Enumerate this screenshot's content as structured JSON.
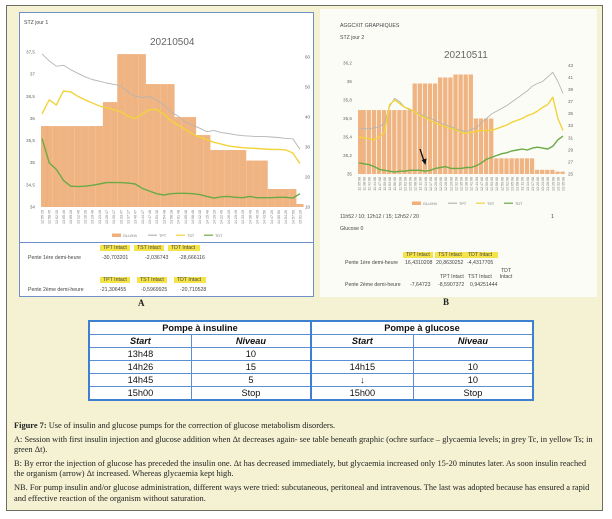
{
  "colors": {
    "bar": "#efb07c",
    "tpt": "#b5b5b5",
    "tst": "#f2d33c",
    "tdt": "#6aaa45",
    "frame_bg": "#f4f2d2",
    "table_border": "#3f7fd0",
    "highlight": "#f5e34a"
  },
  "panel_a": {
    "label": "A",
    "heading": "STZ jour  1",
    "slopes": {
      "headers": [
        "TPT Intact",
        "TST Intact",
        "TDT Intact"
      ],
      "row1_label": "Pente 1ère demi-heure",
      "row1": [
        "-30,703201",
        "-2,036743",
        "-28,666116"
      ],
      "row2_label": "Pente 2ème demi-heure",
      "row2": [
        "-21,306455",
        "-0,5969925",
        "-20,710528"
      ]
    }
  },
  "panel_b": {
    "label": "B",
    "header1": "AGGCXIT GRAPHIQUES",
    "heading": "STZ jour  2",
    "note1": "11h52 / 10; 12h12 / 15;  12h52 / 20",
    "note_num": "1",
    "note2": "Glucose  0",
    "slopes": {
      "headers": [
        "TPT Intact",
        "TST Intact",
        "TDT Intact"
      ],
      "row1_label": "Pente 1ère demi-heure",
      "row1": [
        "16,4310208",
        "20,8630252",
        "-4,4317705"
      ],
      "headers2": [
        "TPT Intact",
        "TST Intact",
        "TDT Intact"
      ],
      "row2_label": "Pente 2ème demi-heure",
      "row2": [
        "-7,64723",
        "-8,5907372",
        "0,94251444"
      ]
    }
  },
  "chart_data": [
    {
      "type": "bar+line",
      "title": "20210504",
      "legend": [
        "GLU/H4",
        "TPT",
        "TST",
        "TDT"
      ],
      "legend_position": "bottom",
      "ylim": [
        34,
        37.5
      ],
      "y_ticks": [
        "37,5",
        "37",
        "36,5",
        "36",
        "35,5",
        "35",
        "34,5",
        "34"
      ],
      "y2lim": [
        10,
        61.7
      ],
      "y2_ticks": [
        "60",
        "50",
        "40",
        "30",
        "20",
        "10"
      ],
      "categories": [
        "12:55:15",
        "12:58:45",
        "13:02:15",
        "13:05:46",
        "13:09:16",
        "13:12:46",
        "13:16:16",
        "13:19:46",
        "13:23:16",
        "13:26:47",
        "13:30:17",
        "13:33:47",
        "13:37:17",
        "13:40:47",
        "13:44:17",
        "13:47:48",
        "13:51:18",
        "13:54:48",
        "13:58:18",
        "14:01:48",
        "14:05:18",
        "14:08:48",
        "14:12:18",
        "14:15:48",
        "14:19:19",
        "14:22:49",
        "14:26:19",
        "14:29:49",
        "14:33:19",
        "14:36:49",
        "14:40:19",
        "14:43:50",
        "14:47:20",
        "14:50:50",
        "14:54:20",
        "14:57:50",
        "15:01:20"
      ],
      "series": [
        {
          "name": "GLU/H4",
          "axis": "right",
          "type": "bar",
          "values": [
            37,
            37,
            37,
            37,
            37,
            37,
            37,
            37,
            37,
            45,
            45,
            61,
            61,
            61,
            61,
            51,
            51,
            51,
            51,
            40,
            40,
            40,
            34,
            34,
            29,
            29,
            29,
            29,
            29,
            25.5,
            25.5,
            25.5,
            16,
            16,
            16,
            16,
            11
          ]
        },
        {
          "name": "TPT",
          "axis": "left",
          "type": "line",
          "values": [
            37.46,
            37.3,
            37.18,
            37.2,
            37.1,
            37.02,
            36.94,
            36.88,
            36.84,
            36.8,
            36.77,
            36.74,
            36.6,
            36.5,
            36.47,
            36.49,
            36.42,
            36.3,
            36.15,
            36.05,
            35.92,
            35.85,
            35.78,
            35.7,
            35.73,
            35.68,
            35.66,
            35.63,
            35.61,
            35.6,
            35.59,
            35.59,
            35.58,
            35.57,
            35.55,
            35.54,
            35.3
          ]
        },
        {
          "name": "TST",
          "axis": "left",
          "type": "line",
          "values": [
            36.1,
            36.42,
            36.3,
            36.62,
            36.6,
            36.5,
            36.42,
            36.35,
            36.28,
            36.24,
            36.2,
            36.15,
            36.05,
            36.0,
            36.1,
            36.2,
            36.2,
            36.1,
            35.95,
            35.85,
            35.75,
            35.65,
            35.58,
            35.52,
            35.46,
            35.42,
            35.38,
            35.36,
            35.34,
            35.33,
            35.32,
            35.31,
            35.3,
            35.3,
            35.29,
            35.22,
            34.98
          ]
        },
        {
          "name": "TDT",
          "axis": "left",
          "type": "line",
          "values": [
            35.55,
            35.0,
            34.85,
            34.6,
            34.47,
            34.46,
            34.47,
            34.49,
            34.52,
            34.55,
            34.55,
            34.55,
            34.54,
            34.52,
            34.42,
            34.36,
            34.3,
            34.27,
            34.3,
            34.31,
            34.31,
            34.3,
            34.28,
            34.24,
            34.2,
            34.23,
            34.24,
            34.22,
            34.21,
            34.24,
            34.21,
            34.21,
            34.21,
            34.22,
            34.22,
            34.2,
            34.3
          ]
        }
      ]
    },
    {
      "type": "bar+line",
      "title": "20210511",
      "legend": [
        "GLU/H4",
        "TPT",
        "TST",
        "TDT"
      ],
      "legend_position": "bottom",
      "ylim": [
        35,
        36.2
      ],
      "y_ticks": [
        "36,2",
        "36",
        "35,8",
        "35,6",
        "35,4",
        "35,2",
        "35"
      ],
      "y2lim": [
        25,
        43.4
      ],
      "y2_ticks": [
        "43",
        "41",
        "39",
        "37",
        "35",
        "33",
        "31",
        "29",
        "27",
        "25"
      ],
      "annotation": "arrow",
      "categories": [
        "11:35:08",
        "11:38:08",
        "11:41:08",
        "11:44:08",
        "11:47:08",
        "11:50:08",
        "11:53:08",
        "11:56:08",
        "11:59:08",
        "12:02:08",
        "12:05:08",
        "12:08:08",
        "12:11:08",
        "12:14:08",
        "12:17:08",
        "12:20:08",
        "12:23:08",
        "12:26:08",
        "12:29:08",
        "12:32:08",
        "12:35:08",
        "12:38:08",
        "12:41:08",
        "12:44:08",
        "12:47:08",
        "12:50:08",
        "12:53:08",
        "12:56:08",
        "12:59:08",
        "13:02:08",
        "13:05:08",
        "13:08:08",
        "13:11:08",
        "13:14:08",
        "13:17:08",
        "13:20:08",
        "13:23:08",
        "13:26:08",
        "13:29:08",
        "13:32:08",
        "13:35:08"
      ],
      "series": [
        {
          "name": "GLU/H4",
          "axis": "right",
          "type": "bar",
          "values": [
            35.6,
            35.6,
            35.6,
            35.6,
            35.6,
            35.6,
            35.6,
            35.6,
            35.6,
            35.6,
            35.6,
            40,
            40,
            40,
            40,
            40,
            41,
            41,
            41,
            41.5,
            41.5,
            41.5,
            41.5,
            34.2,
            34.2,
            34.2,
            34.2,
            27.6,
            27.6,
            27.6,
            27.6,
            27.6,
            27.6,
            27.6,
            27.6,
            25.7,
            25.7,
            25.7,
            25.7,
            25.4,
            25.4
          ]
        },
        {
          "name": "TPT",
          "axis": "left",
          "type": "line",
          "values": [
            35.49,
            35.49,
            35.49,
            35.5,
            35.51,
            35.55,
            35.73,
            35.82,
            35.78,
            35.72,
            35.69,
            35.67,
            35.65,
            35.62,
            35.6,
            35.58,
            35.55,
            35.53,
            35.51,
            35.49,
            35.47,
            35.46,
            35.48,
            35.5,
            35.55,
            35.6,
            35.65,
            35.68,
            35.71,
            35.74,
            35.78,
            35.82,
            35.86,
            35.9,
            35.95,
            35.98,
            36.0,
            36.05,
            36.1,
            36.0,
            35.87
          ]
        },
        {
          "name": "TST",
          "axis": "left",
          "type": "line",
          "values": [
            35.4,
            35.39,
            35.38,
            35.37,
            35.4,
            35.45,
            35.75,
            35.8,
            35.76,
            35.72,
            35.7,
            35.67,
            35.63,
            35.61,
            35.58,
            35.55,
            35.53,
            35.51,
            35.49,
            35.48,
            35.45,
            35.44,
            35.45,
            35.46,
            35.47,
            35.47,
            35.47,
            35.49,
            35.51,
            35.53,
            35.56,
            35.58,
            35.6,
            35.63,
            35.65,
            35.68,
            35.72,
            35.75,
            35.83,
            35.6,
            35.47
          ]
        },
        {
          "name": "TDT",
          "axis": "left",
          "type": "line",
          "values": [
            35.12,
            35.11,
            35.1,
            35.08,
            35.05,
            35.04,
            35.03,
            35.02,
            35.03,
            35.03,
            35.04,
            35.04,
            35.04,
            35.03,
            35.04,
            35.06,
            35.07,
            35.08,
            35.06,
            35.06,
            35.06,
            35.07,
            35.07,
            35.09,
            35.12,
            35.16,
            35.18,
            35.2,
            35.22,
            35.23,
            35.25,
            35.26,
            35.27,
            35.26,
            35.28,
            35.29,
            35.28,
            35.27,
            35.3,
            35.37,
            35.41
          ]
        }
      ]
    }
  ],
  "pump_table": {
    "groups": [
      "Pompe à insuline",
      "Pompe à glucose"
    ],
    "columns": [
      "Start",
      "Niveau",
      "Start",
      "Niveau"
    ],
    "rows": [
      [
        "13h48",
        "10",
        "",
        ""
      ],
      [
        "14h26",
        "15",
        "14h15",
        "10"
      ],
      [
        "14h45",
        "5",
        "↓",
        "10"
      ],
      [
        "15h00",
        "Stop",
        "15h00",
        "Stop"
      ]
    ]
  },
  "caption": {
    "figure_label": "Figure 7:",
    "figure_text": " Use of insulin and glucose pumps for the correction of glucose metabolism disorders.",
    "para_a": "A: Session with first insulin injection and glucose addition when Δt decreases again- see table beneath graphic (ochre surface – glycaemia levels; in grey Tc, in yellow Ts; in green Δt).",
    "para_b": "B: By error the injection of glucose has preceded the insulin one. Δt has decreased immediately, but glycaemia increased only 15-20 minutes later. As soon insulin reached the organism (arrow) Δt increased. Whereas glycaemia kept high.",
    "para_nb": "NB. For pump insulin and/or glucose administration, different ways were tried: subcutaneous, peritoneal and intravenous. The last was adopted because has ensured a rapid and effective reaction of the organism without saturation."
  }
}
